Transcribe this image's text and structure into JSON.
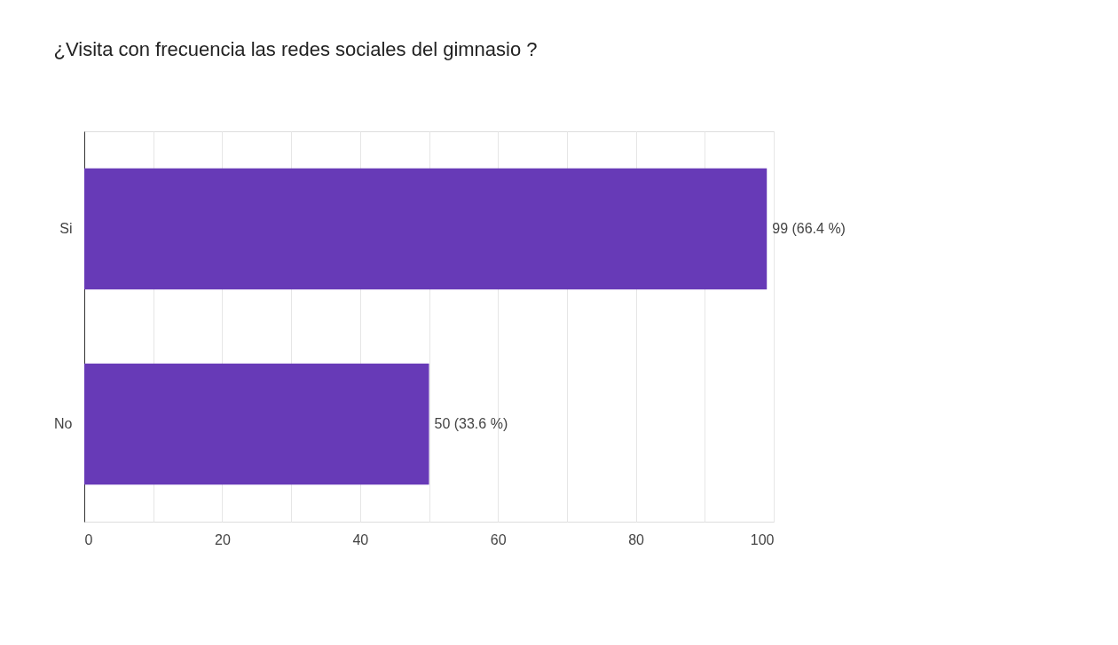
{
  "chart_data": {
    "type": "bar",
    "orientation": "horizontal",
    "title": "¿Visita con frecuencia las redes sociales del gimnasio  ?",
    "categories": [
      "Si",
      "No"
    ],
    "values": [
      99,
      50
    ],
    "value_labels": [
      "99 (66.4 %)",
      "50 (33.6 %)"
    ],
    "color": "#673ab7",
    "xlim": [
      0,
      100
    ],
    "xticks": [
      0,
      {
        "value": 10,
        "label": null
      },
      20,
      {
        "value": 30,
        "label": null
      },
      40,
      {
        "value": 50,
        "label": null
      },
      60,
      {
        "value": 70,
        "label": null
      },
      80,
      {
        "value": 90,
        "label": null
      },
      100
    ],
    "grid": "x"
  }
}
